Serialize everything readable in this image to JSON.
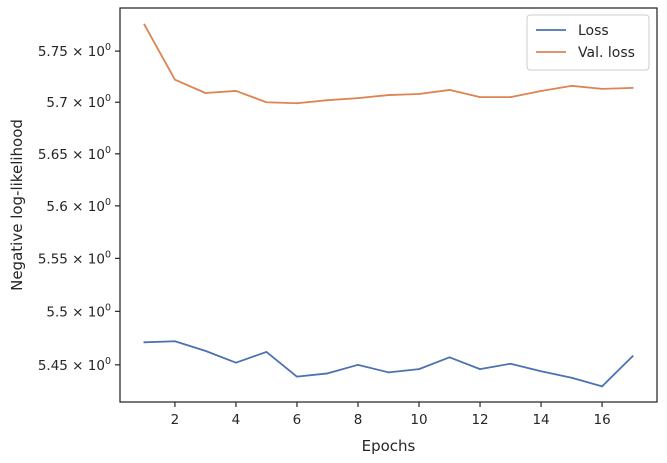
{
  "chart_data": {
    "type": "line",
    "title": "",
    "xlabel": "Epochs",
    "ylabel": "Negative log-likelihood",
    "x": [
      1,
      2,
      3,
      4,
      5,
      6,
      7,
      8,
      9,
      10,
      11,
      12,
      13,
      14,
      15,
      16,
      17
    ],
    "xticks": [
      2,
      4,
      6,
      8,
      10,
      12,
      14,
      16
    ],
    "xtick_labels": [
      "2",
      "4",
      "6",
      "8",
      "10",
      "12",
      "14",
      "16"
    ],
    "xlim": [
      0.2,
      17.8
    ],
    "yticks": [
      5.45,
      5.5,
      5.55,
      5.6,
      5.65,
      5.7,
      5.75
    ],
    "ytick_labels": [
      {
        "mantissa": "5.45",
        "base": "10",
        "exp": "0"
      },
      {
        "mantissa": "5.5",
        "base": "10",
        "exp": "0"
      },
      {
        "mantissa": "5.55",
        "base": "10",
        "exp": "0"
      },
      {
        "mantissa": "5.6",
        "base": "10",
        "exp": "0"
      },
      {
        "mantissa": "5.65",
        "base": "10",
        "exp": "0"
      },
      {
        "mantissa": "5.7",
        "base": "10",
        "exp": "0"
      },
      {
        "mantissa": "5.75",
        "base": "10",
        "exp": "0"
      }
    ],
    "ylim": [
      5.4155,
      5.7925
    ],
    "yscale": "log",
    "grid": false,
    "legend_position": "top-right",
    "series": [
      {
        "name": "Loss",
        "color": "#4c72b0",
        "values": [
          5.471,
          5.472,
          5.463,
          5.452,
          5.462,
          5.439,
          5.442,
          5.45,
          5.443,
          5.446,
          5.457,
          5.446,
          5.451,
          5.444,
          5.438,
          5.43,
          5.458
        ]
      },
      {
        "name": "Val. loss",
        "color": "#dd8452",
        "values": [
          5.776,
          5.722,
          5.709,
          5.711,
          5.7,
          5.699,
          5.702,
          5.704,
          5.707,
          5.708,
          5.712,
          5.705,
          5.705,
          5.711,
          5.716,
          5.713,
          5.714
        ]
      }
    ]
  }
}
